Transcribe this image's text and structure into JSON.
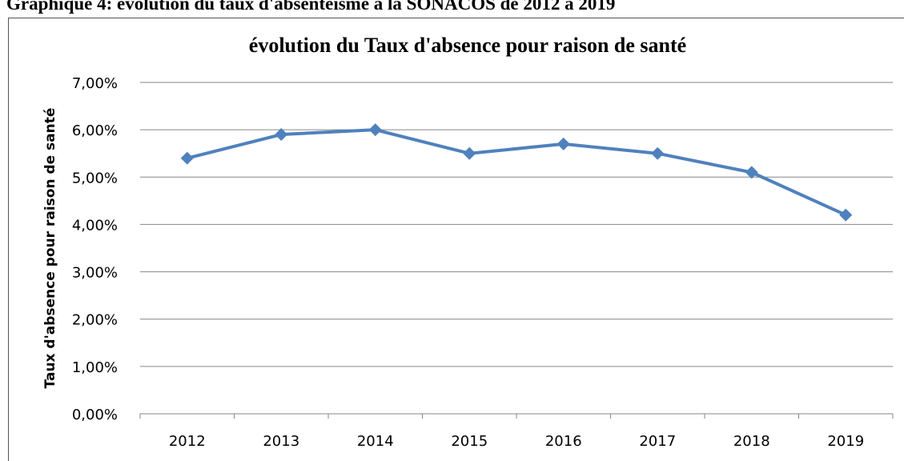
{
  "heading": "Graphique 4: évolution du taux d'absentéisme à la SONACOS de 2012 à 2019",
  "chart_data": {
    "type": "line",
    "title": "évolution  du Taux d'absence pour raison de santé",
    "y_label": "Taux d'absence pour raison de santé",
    "categories": [
      "2012",
      "2013",
      "2014",
      "2015",
      "2016",
      "2017",
      "2018",
      "2019"
    ],
    "series": [
      {
        "name": "Taux d'absence pour raison de santé",
        "color": "#4f81bd",
        "values": [
          5.4,
          5.9,
          6.0,
          5.5,
          5.7,
          5.5,
          5.1,
          4.2
        ]
      }
    ],
    "ylim": [
      0,
      7
    ],
    "yticks": [
      {
        "value": 0,
        "label": "0,00%"
      },
      {
        "value": 1,
        "label": "1,00%"
      },
      {
        "value": 2,
        "label": "2,00%"
      },
      {
        "value": 3,
        "label": "3,00%"
      },
      {
        "value": 4,
        "label": "4,00%"
      },
      {
        "value": 5,
        "label": "5,00%"
      },
      {
        "value": 6,
        "label": "6,00%"
      },
      {
        "value": 7,
        "label": "7,00%"
      }
    ],
    "grid": true,
    "legend": false
  }
}
